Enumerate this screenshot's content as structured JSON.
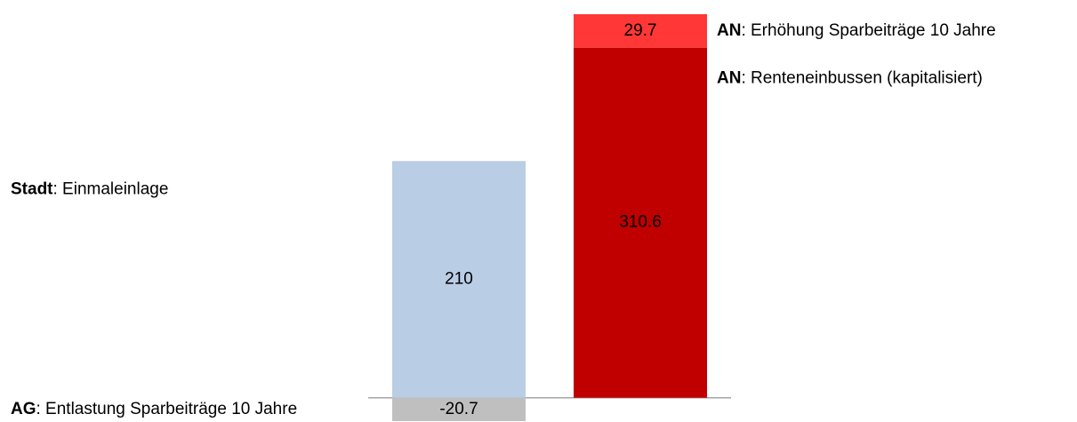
{
  "chart_data": {
    "type": "stacked-bar",
    "categories": [
      null,
      null
    ],
    "series": [
      {
        "name": "Stadt: Einmaleinlage",
        "color": "#b9cde5",
        "values": [
          210,
          null
        ]
      },
      {
        "name": "AG: Entlastung Sparbeiträge 10 Jahre",
        "color": "#bfbfbf",
        "values": [
          -20.7,
          null
        ]
      },
      {
        "name": "AN: Renteneinbussen (kapitalisiert)",
        "color": "#c00000",
        "values": [
          null,
          310.6
        ]
      },
      {
        "name": "AN: Erhöhung Sparbeiträge 10 Jahre",
        "color": "#ff3737",
        "values": [
          null,
          29.7
        ]
      }
    ]
  }
}
